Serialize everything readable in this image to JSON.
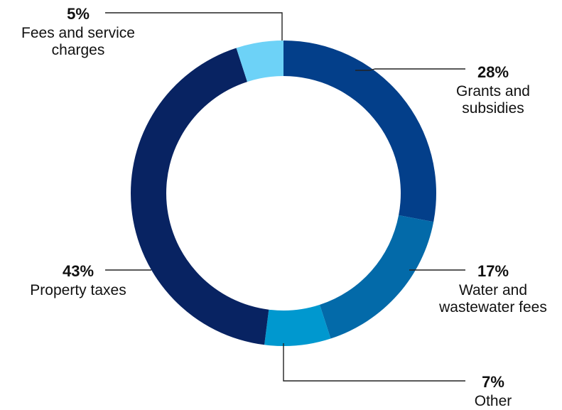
{
  "chart_data": {
    "type": "pie",
    "variant": "donut",
    "start_angle_deg": 0,
    "direction": "clockwise",
    "slices": [
      {
        "label": "Grants and subsidies",
        "percent_text": "28%",
        "value": 28,
        "color": "#033f8a"
      },
      {
        "label": "Water and wastewater fees",
        "percent_text": "17%",
        "value": 17,
        "color": "#036aa9"
      },
      {
        "label": "Other",
        "percent_text": "7%",
        "value": 7,
        "color": "#0098cf"
      },
      {
        "label": "Property taxes",
        "percent_text": "43%",
        "value": 43,
        "color": "#082362"
      },
      {
        "label": "Fees and service charges",
        "percent_text": "5%",
        "value": 5,
        "color": "#6dd2f7"
      }
    ]
  }
}
